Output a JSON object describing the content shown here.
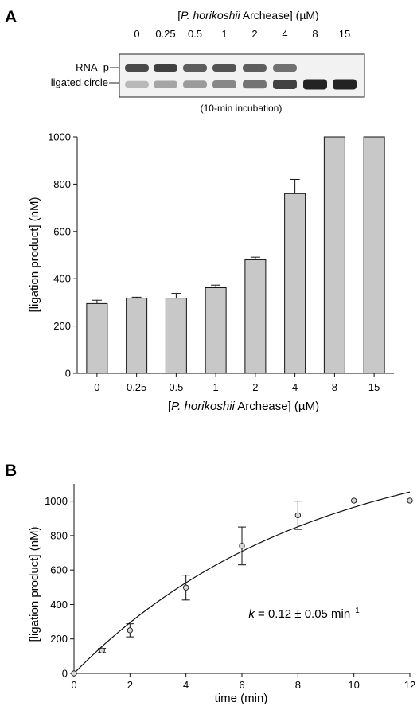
{
  "panel_a": {
    "letter": "A",
    "gel": {
      "title_prefix": "[",
      "title_species": "P. horikoshii",
      "title_suffix": " Archease] (µM)",
      "lanes": [
        "0",
        "0.25",
        "0.5",
        "1",
        "2",
        "4",
        "8",
        "15"
      ],
      "band_top_label": "RNA–p",
      "band_bottom_label": "ligated circle",
      "caption": "(10-min incubation)",
      "band_top_intensity": [
        0.85,
        0.9,
        0.75,
        0.8,
        0.75,
        0.65,
        0.0,
        0.0
      ],
      "band_bottom_intensity": [
        0.25,
        0.35,
        0.4,
        0.5,
        0.6,
        0.85,
        1.0,
        1.0
      ]
    }
  },
  "panel_b": {
    "letter": "B"
  },
  "chart_data": [
    {
      "type": "bar",
      "categories": [
        "0",
        "0.25",
        "0.5",
        "1",
        "2",
        "4",
        "8",
        "15"
      ],
      "values": [
        295,
        318,
        318,
        362,
        480,
        760,
        1000,
        1000
      ],
      "errors": [
        14,
        4,
        20,
        11,
        11,
        60,
        0,
        0
      ],
      "xlabel_species": "P. horikoshii",
      "xlabel_suffix": " Archease] (µM)",
      "xlabel_prefix": "[",
      "ylabel": "[ligation product] (nM)",
      "ylim": [
        0,
        1000
      ],
      "yticks": [
        "0",
        "200",
        "400",
        "600",
        "800",
        "1000"
      ],
      "bar_color": "#c8c8c8"
    },
    {
      "type": "scatter",
      "x": [
        0,
        1,
        2,
        4,
        6,
        8,
        10,
        12
      ],
      "y": [
        0,
        133,
        250,
        498,
        740,
        918,
        1003,
        1003
      ],
      "errors": [
        0,
        12,
        38,
        72,
        110,
        82,
        0,
        0
      ],
      "xlabel": "time (min)",
      "ylabel": "[ligation product] (nM)",
      "xlim": [
        0,
        12
      ],
      "ylim": [
        0,
        1100
      ],
      "xticks": [
        "0",
        "2",
        "4",
        "6",
        "8",
        "10",
        "12"
      ],
      "yticks": [
        "0",
        "200",
        "400",
        "600",
        "800",
        "1000"
      ],
      "fit": {
        "A": 1380,
        "k": 0.12
      },
      "annotation_symbol": "k",
      "annotation_text": " = 0.12 ± 0.05 min",
      "annotation_sup": "−1"
    }
  ]
}
